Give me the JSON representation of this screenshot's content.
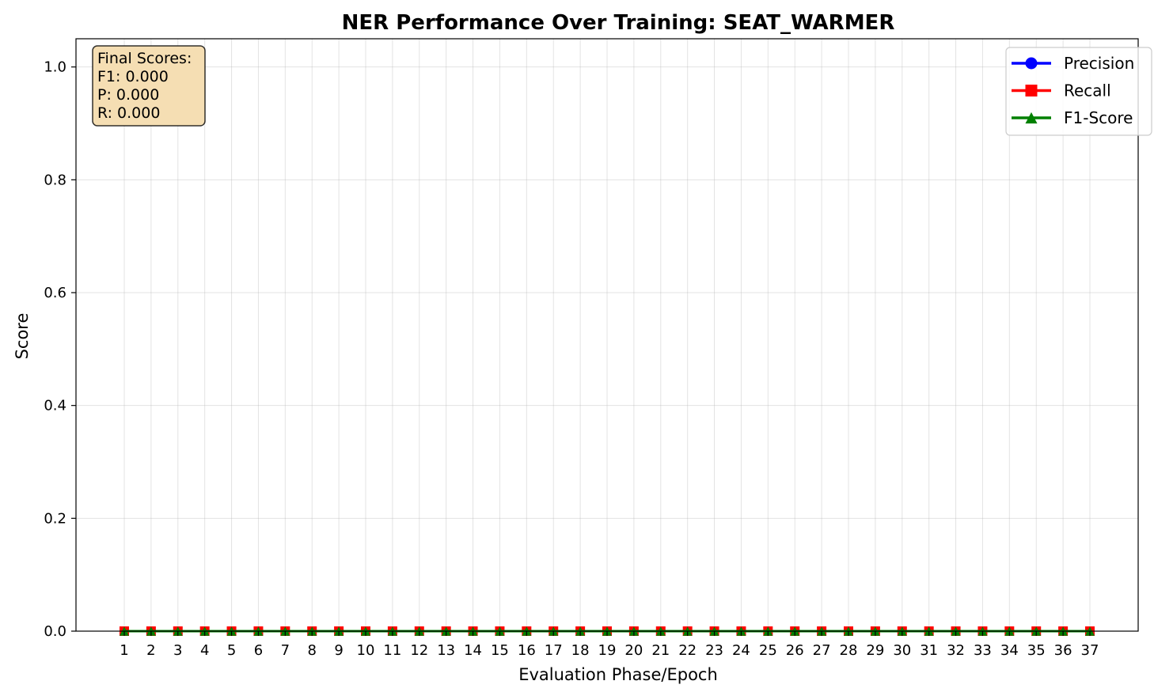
{
  "chart_data": {
    "type": "line",
    "title": "NER Performance Over Training: SEAT_WARMER",
    "xlabel": "Evaluation Phase/Epoch",
    "ylabel": "Score",
    "x": [
      1,
      2,
      3,
      4,
      5,
      6,
      7,
      8,
      9,
      10,
      11,
      12,
      13,
      14,
      15,
      16,
      17,
      18,
      19,
      20,
      21,
      22,
      23,
      24,
      25,
      26,
      27,
      28,
      29,
      30,
      31,
      32,
      33,
      34,
      35,
      36,
      37
    ],
    "ylim": [
      0,
      1.05
    ],
    "yticks": [
      "0.0",
      "0.2",
      "0.4",
      "0.6",
      "0.8",
      "1.0"
    ],
    "grid": true,
    "legend_position": "top-right",
    "series": [
      {
        "name": "Precision",
        "color": "#0000ff",
        "marker": "circle",
        "values": [
          0,
          0,
          0,
          0,
          0,
          0,
          0,
          0,
          0,
          0,
          0,
          0,
          0,
          0,
          0,
          0,
          0,
          0,
          0,
          0,
          0,
          0,
          0,
          0,
          0,
          0,
          0,
          0,
          0,
          0,
          0,
          0,
          0,
          0,
          0,
          0,
          0
        ]
      },
      {
        "name": "Recall",
        "color": "#ff0000",
        "marker": "square",
        "values": [
          0,
          0,
          0,
          0,
          0,
          0,
          0,
          0,
          0,
          0,
          0,
          0,
          0,
          0,
          0,
          0,
          0,
          0,
          0,
          0,
          0,
          0,
          0,
          0,
          0,
          0,
          0,
          0,
          0,
          0,
          0,
          0,
          0,
          0,
          0,
          0,
          0
        ]
      },
      {
        "name": "F1-Score",
        "color": "#008000",
        "marker": "triangle",
        "values": [
          0,
          0,
          0,
          0,
          0,
          0,
          0,
          0,
          0,
          0,
          0,
          0,
          0,
          0,
          0,
          0,
          0,
          0,
          0,
          0,
          0,
          0,
          0,
          0,
          0,
          0,
          0,
          0,
          0,
          0,
          0,
          0,
          0,
          0,
          0,
          0,
          0
        ]
      }
    ],
    "annotation": {
      "lines": [
        "Final Scores:",
        "F1: 0.000",
        "P: 0.000",
        "R: 0.000"
      ],
      "background": "#f5deb3"
    }
  }
}
